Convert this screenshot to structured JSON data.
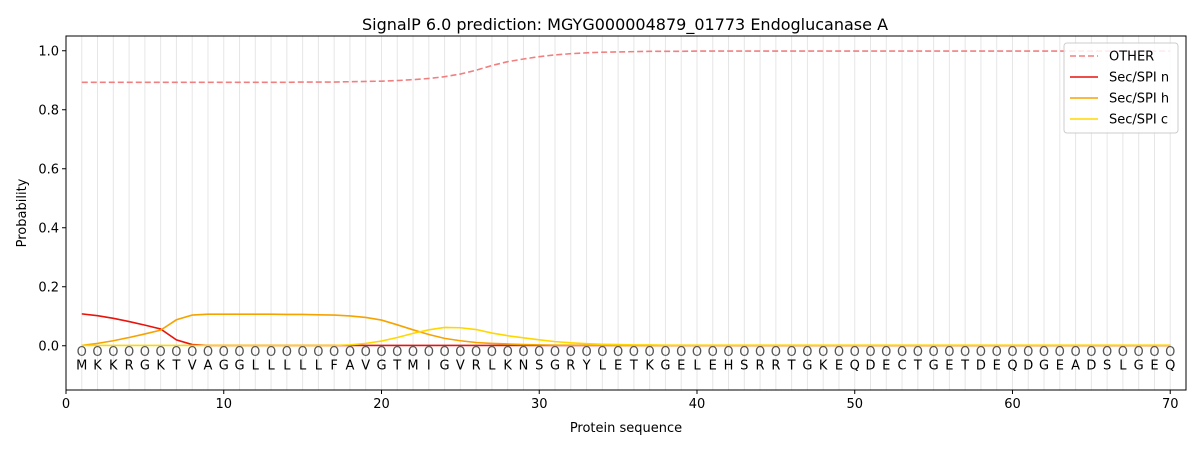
{
  "chart_data": {
    "type": "line",
    "title": "SignalP 6.0 prediction: MGYG000004879_01773 Endoglucanase A",
    "xlabel": "Protein sequence",
    "ylabel": "Probability",
    "xlim": [
      0,
      71
    ],
    "ylim": [
      -0.15,
      1.05
    ],
    "grid": "vertical lines at each residue",
    "legend_position": "top-right",
    "x_ticks": [
      0,
      10,
      20,
      30,
      40,
      50,
      60,
      70
    ],
    "y_ticks": [
      0.0,
      0.2,
      0.4,
      0.6,
      0.8,
      1.0
    ],
    "residue_marker": "O",
    "residues": [
      "M",
      "K",
      "K",
      "R",
      "G",
      "K",
      "T",
      "V",
      "A",
      "G",
      "G",
      "L",
      "L",
      "L",
      "L",
      "L",
      "F",
      "A",
      "V",
      "G",
      "T",
      "M",
      "I",
      "G",
      "V",
      "R",
      "L",
      "K",
      "N",
      "S",
      "G",
      "R",
      "Y",
      "L",
      "E",
      "T",
      "K",
      "G",
      "E",
      "L",
      "E",
      "H",
      "S",
      "R",
      "R",
      "T",
      "G",
      "K",
      "E",
      "Q",
      "D",
      "E",
      "C",
      "T",
      "G",
      "E",
      "T",
      "D",
      "E",
      "Q",
      "D",
      "G",
      "E",
      "A",
      "D",
      "S",
      "L",
      "G",
      "E",
      "Q"
    ],
    "series": [
      {
        "name": "OTHER",
        "color": "#f08080",
        "dash": true,
        "values": [
          0.893,
          0.893,
          0.893,
          0.893,
          0.893,
          0.893,
          0.893,
          0.893,
          0.893,
          0.893,
          0.893,
          0.893,
          0.893,
          0.893,
          0.894,
          0.894,
          0.894,
          0.895,
          0.896,
          0.897,
          0.899,
          0.902,
          0.906,
          0.912,
          0.921,
          0.934,
          0.95,
          0.963,
          0.972,
          0.98,
          0.986,
          0.99,
          0.993,
          0.995,
          0.996,
          0.997,
          0.998,
          0.998,
          0.998,
          0.999,
          0.999,
          0.999,
          0.999,
          0.999,
          0.999,
          0.999,
          0.999,
          0.999,
          0.999,
          0.999,
          0.999,
          0.999,
          0.999,
          0.999,
          0.999,
          0.999,
          0.999,
          0.999,
          0.999,
          0.999,
          0.999,
          0.999,
          0.999,
          0.999,
          0.999,
          0.999,
          0.999,
          0.999,
          0.999,
          0.999
        ]
      },
      {
        "name": "Sec/SPI n",
        "color": "#e8130c",
        "dash": false,
        "values": [
          0.108,
          0.102,
          0.093,
          0.082,
          0.07,
          0.057,
          0.02,
          0.004,
          0.001,
          0.001,
          0.001,
          0.001,
          0.001,
          0.001,
          0.001,
          0.001,
          0.001,
          0.001,
          0.001,
          0.001,
          0.001,
          0.001,
          0.001,
          0.001,
          0.001,
          0.001,
          0.001,
          0.001,
          0.001,
          0.001,
          0.001,
          0.001,
          0.001,
          0.001,
          0.001,
          0.001,
          0.001,
          0.001,
          0.001,
          0.001,
          0.001,
          0.001,
          0.001,
          0.001,
          0.001,
          0.001,
          0.001,
          0.001,
          0.001,
          0.001,
          0.001,
          0.001,
          0.001,
          0.001,
          0.001,
          0.001,
          0.001,
          0.001,
          0.001,
          0.001,
          0.001,
          0.001,
          0.001,
          0.001,
          0.001,
          0.001,
          0.001,
          0.001,
          0.001,
          0.001
        ]
      },
      {
        "name": "Sec/SPI h",
        "color": "#f5a300",
        "dash": false,
        "values": [
          0.001,
          0.008,
          0.017,
          0.028,
          0.04,
          0.053,
          0.088,
          0.104,
          0.107,
          0.107,
          0.107,
          0.107,
          0.107,
          0.106,
          0.106,
          0.105,
          0.104,
          0.101,
          0.096,
          0.087,
          0.071,
          0.054,
          0.038,
          0.025,
          0.017,
          0.011,
          0.008,
          0.006,
          0.004,
          0.003,
          0.002,
          0.002,
          0.002,
          0.002,
          0.001,
          0.001,
          0.001,
          0.001,
          0.001,
          0.001,
          0.001,
          0.001,
          0.001,
          0.001,
          0.001,
          0.001,
          0.001,
          0.001,
          0.001,
          0.001,
          0.001,
          0.001,
          0.001,
          0.001,
          0.001,
          0.001,
          0.001,
          0.001,
          0.001,
          0.001,
          0.001,
          0.001,
          0.001,
          0.001,
          0.001,
          0.001,
          0.001,
          0.001,
          0.001,
          0.001
        ]
      },
      {
        "name": "Sec/SPI c",
        "color": "#ffd700",
        "dash": false,
        "values": [
          0.001,
          0.001,
          0.001,
          0.001,
          0.001,
          0.001,
          0.001,
          0.001,
          0.001,
          0.001,
          0.001,
          0.001,
          0.001,
          0.001,
          0.001,
          0.001,
          0.001,
          0.003,
          0.008,
          0.016,
          0.028,
          0.042,
          0.054,
          0.062,
          0.061,
          0.055,
          0.043,
          0.034,
          0.027,
          0.02,
          0.014,
          0.01,
          0.007,
          0.005,
          0.004,
          0.003,
          0.003,
          0.002,
          0.002,
          0.002,
          0.002,
          0.002,
          0.002,
          0.002,
          0.002,
          0.002,
          0.002,
          0.002,
          0.002,
          0.002,
          0.002,
          0.002,
          0.002,
          0.002,
          0.002,
          0.002,
          0.002,
          0.002,
          0.002,
          0.002,
          0.002,
          0.002,
          0.002,
          0.002,
          0.002,
          0.002,
          0.002,
          0.002,
          0.002,
          0.002
        ]
      }
    ]
  }
}
